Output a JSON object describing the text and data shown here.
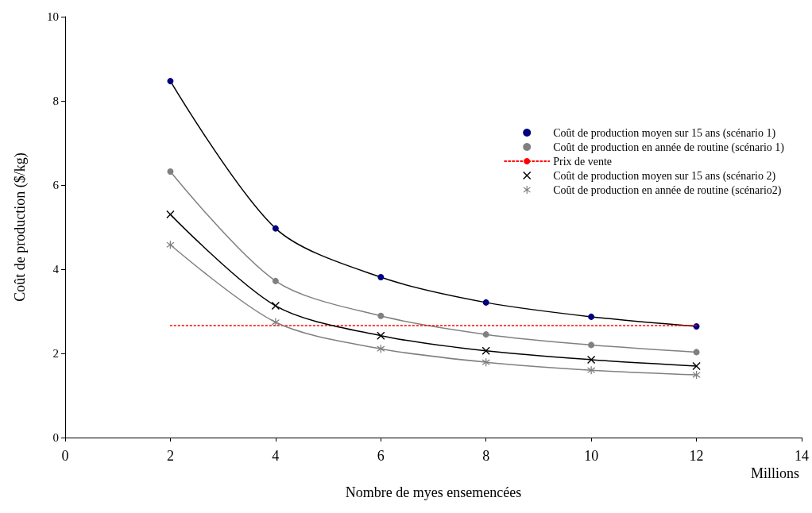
{
  "chart_data": {
    "type": "line",
    "xlabel": "Nombre de myes ensemencées",
    "ylabel": "Coût de production ($/kg)",
    "annotations": [
      "Millions"
    ],
    "xlim": [
      0,
      14
    ],
    "xticks": [
      0,
      2,
      4,
      6,
      8,
      10,
      12,
      14
    ],
    "ylim": [
      0,
      10
    ],
    "yticks": [
      0,
      2,
      4,
      6,
      8,
      10
    ],
    "grid": false,
    "legend": "right",
    "series": [
      {
        "name": "Coût de production moyen sur 15 ans (scénario 1)",
        "color": "#000080",
        "marker": "circle",
        "line_style": "solid",
        "x": [
          2,
          4,
          6,
          8,
          10,
          12
        ],
        "values": [
          8.47,
          4.97,
          3.81,
          3.21,
          2.87,
          2.64
        ]
      },
      {
        "name": "Coût de production en année de routine (scénario 1)",
        "color": "#808080",
        "marker": "circle",
        "line_style": "solid",
        "x": [
          2,
          4,
          6,
          8,
          10,
          12
        ],
        "values": [
          6.32,
          3.72,
          2.89,
          2.45,
          2.2,
          2.03
        ]
      },
      {
        "name": "Prix de vente",
        "color": "#ff0000",
        "marker": "none",
        "line_style": "dotted",
        "x": [
          2,
          12
        ],
        "values": [
          2.66,
          2.66
        ]
      },
      {
        "name": "Coût de production moyen sur 15 ans (scénario 2)",
        "color": "#000000",
        "marker": "cross",
        "line_style": "solid",
        "x": [
          2,
          4,
          6,
          8,
          10,
          12
        ],
        "values": [
          5.3,
          3.13,
          2.42,
          2.06,
          1.85,
          1.7
        ]
      },
      {
        "name": "Coût de production en année de routine (scénario2)",
        "color": "#808080",
        "marker": "star",
        "line_style": "solid",
        "x": [
          2,
          4,
          6,
          8,
          10,
          12
        ],
        "values": [
          4.58,
          2.74,
          2.11,
          1.79,
          1.6,
          1.49
        ]
      }
    ]
  }
}
